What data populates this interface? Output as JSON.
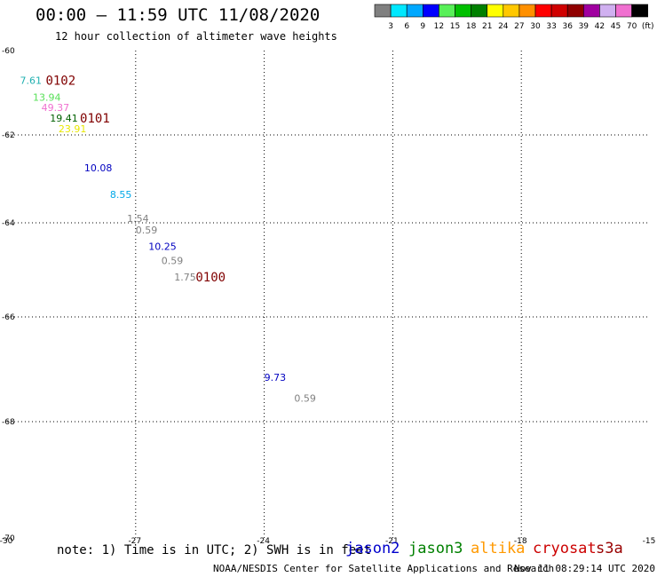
{
  "header": {
    "title": "00:00 – 11:59 UTC 11/08/2020",
    "subtitle": "12 hour collection of altimeter wave heights"
  },
  "colorbar": {
    "colors": [
      "#808080",
      "#00e8ff",
      "#00a8ff",
      "#0000ff",
      "#58f058",
      "#00c000",
      "#008000",
      "#ffff00",
      "#ffc800",
      "#ff9000",
      "#ff0000",
      "#d00000",
      "#900000",
      "#a000a0",
      "#d0b0f0",
      "#f070d0",
      "#000000"
    ],
    "labels": [
      "3",
      "6",
      "9",
      "12",
      "15",
      "18",
      "21",
      "24",
      "27",
      "30",
      "33",
      "36",
      "39",
      "42",
      "45",
      "70",
      "(ft)"
    ]
  },
  "chart_data": {
    "type": "scatter",
    "title": "",
    "xlabel": "",
    "ylabel": "",
    "xlim": [
      -30,
      -15
    ],
    "ylim": [
      -70,
      -60
    ],
    "x_ticks": [
      "-30",
      "-27",
      "-24",
      "-21",
      "-18",
      "-15"
    ],
    "y_ticks": [
      "-60",
      "-62",
      "-64",
      "-66",
      "-68",
      "-70"
    ],
    "grid": true,
    "points": [
      {
        "label": "7.61",
        "x": -29.7,
        "y": -60.7,
        "color": "#20b0b0"
      },
      {
        "label": "13.94",
        "x": -29.4,
        "y": -61.1,
        "color": "#58e058"
      },
      {
        "label": "49.37",
        "x": -29.2,
        "y": -61.35,
        "color": "#f070d0"
      },
      {
        "label": "19.41",
        "x": -29.0,
        "y": -61.6,
        "color": "#006000"
      },
      {
        "label": "23.91",
        "x": -28.8,
        "y": -61.85,
        "color": "#e8e800"
      },
      {
        "label": "10.08",
        "x": -28.2,
        "y": -62.75,
        "color": "#0000c0"
      },
      {
        "label": "8.55",
        "x": -27.6,
        "y": -63.35,
        "color": "#00a8e8"
      },
      {
        "label": "1.54",
        "x": -27.2,
        "y": -63.9,
        "color": "#808080"
      },
      {
        "label": "0.59",
        "x": -27.0,
        "y": -64.15,
        "color": "#808080"
      },
      {
        "label": "10.25",
        "x": -26.7,
        "y": -64.5,
        "color": "#0000c0"
      },
      {
        "label": "0.59",
        "x": -26.4,
        "y": -64.8,
        "color": "#808080"
      },
      {
        "label": "1.75",
        "x": -26.1,
        "y": -65.15,
        "color": "#808080"
      },
      {
        "label": "9.73",
        "x": -24.0,
        "y": -67.15,
        "color": "#0000c0"
      },
      {
        "label": "0.59",
        "x": -23.3,
        "y": -67.55,
        "color": "#808080"
      }
    ],
    "annotations": [
      {
        "label": "0102",
        "x": -29.1,
        "y": -60.7,
        "color": "#800000"
      },
      {
        "label": "0101",
        "x": -28.3,
        "y": -61.6,
        "color": "#800000"
      },
      {
        "label": "0100",
        "x": -25.6,
        "y": -65.15,
        "color": "#800000"
      }
    ]
  },
  "footer": {
    "note": "note: 1) Time is in UTC; 2) SWH is in feet",
    "satellites": [
      {
        "name": "jason2",
        "color": "#0000cc"
      },
      {
        "name": "jason3",
        "color": "#008000"
      },
      {
        "name": "altika",
        "color": "#ff9900"
      },
      {
        "name": "cryosat",
        "color": "#cc0000"
      },
      {
        "name": "s3a",
        "color": "#990000"
      }
    ],
    "credit": "NOAA/NESDIS Center for Satellite Applications and Research",
    "timestamp": "Nov 11 08:29:14 UTC 2020"
  }
}
